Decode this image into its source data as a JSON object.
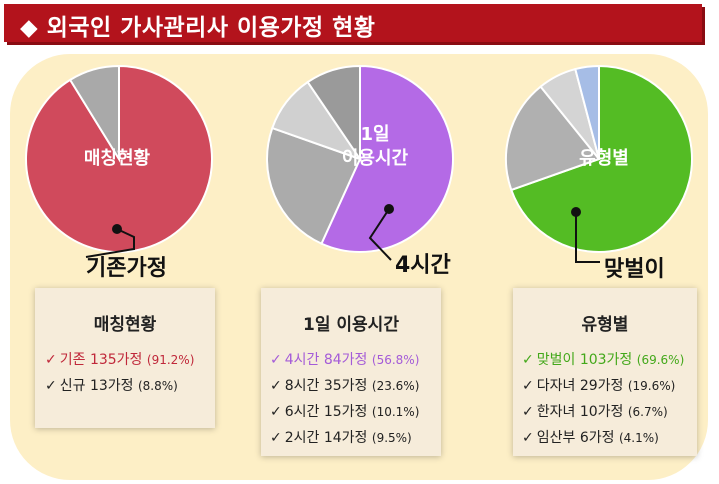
{
  "title": "◆ 외국인 가사관리사 이용가정 현황",
  "chart_data": [
    {
      "type": "pie",
      "label": "매칭현황",
      "callout": "기존가정",
      "slices": [
        {
          "name": "기존",
          "count": 135,
          "value": 91.2,
          "color": "#d04a5c"
        },
        {
          "name": "신규",
          "count": 13,
          "value": 8.8,
          "color": "#a9a9a9"
        }
      ]
    },
    {
      "type": "pie",
      "label_lines": [
        "1일",
        "이용시간"
      ],
      "callout": "4시간",
      "slices": [
        {
          "name": "4시간",
          "count": 84,
          "value": 56.8,
          "color": "#b46ae6"
        },
        {
          "name": "8시간",
          "count": 35,
          "value": 23.6,
          "color": "#ababab"
        },
        {
          "name": "6시간",
          "count": 15,
          "value": 10.1,
          "color": "#d0d0d0"
        },
        {
          "name": "2시간",
          "count": 14,
          "value": 9.5,
          "color": "#9a9a9a"
        }
      ]
    },
    {
      "type": "pie",
      "label": "유형별",
      "callout": "맞벌이",
      "slices": [
        {
          "name": "맞벌이",
          "count": 103,
          "value": 69.6,
          "color": "#54bc24"
        },
        {
          "name": "다자녀",
          "count": 29,
          "value": 19.6,
          "color": "#b0b0b0"
        },
        {
          "name": "한자녀",
          "count": 10,
          "value": 6.7,
          "color": "#d4d4d4"
        },
        {
          "name": "임산부",
          "count": 6,
          "value": 4.1,
          "color": "#a6bde6"
        }
      ]
    }
  ],
  "boxes": [
    {
      "title": "매칭현황",
      "items": [
        {
          "text": "기존 135가정 ",
          "pct": "(91.2%)",
          "highlight": true,
          "color": "#c0283a"
        },
        {
          "text": "신규 13가정 ",
          "pct": "(8.8%)",
          "highlight": false,
          "color": "#222222"
        }
      ]
    },
    {
      "title": "1일 이용시간",
      "items": [
        {
          "text": "4시간 84가정 ",
          "pct": "(56.8%)",
          "highlight": true,
          "color": "#a45bd8"
        },
        {
          "text": "8시간 35가정 ",
          "pct": "(23.6%)",
          "highlight": false,
          "color": "#222222"
        },
        {
          "text": "6시간 15가정 ",
          "pct": "(10.1%)",
          "highlight": false,
          "color": "#222222"
        },
        {
          "text": "2시간 14가정 ",
          "pct": "(9.5%)",
          "highlight": false,
          "color": "#222222"
        }
      ]
    },
    {
      "title": "유형별",
      "items": [
        {
          "text": "맞벌이 103가정 ",
          "pct": "(69.6%)",
          "highlight": true,
          "color": "#43a81a"
        },
        {
          "text": "다자녀 29가정 ",
          "pct": "(19.6%)",
          "highlight": false,
          "color": "#222222"
        },
        {
          "text": "한자녀 10가정 ",
          "pct": "(6.7%)",
          "highlight": false,
          "color": "#222222"
        },
        {
          "text": "임산부 6가정  ",
          "pct": "(4.1%)",
          "highlight": false,
          "color": "#222222"
        }
      ]
    }
  ],
  "checkmark": "✓"
}
